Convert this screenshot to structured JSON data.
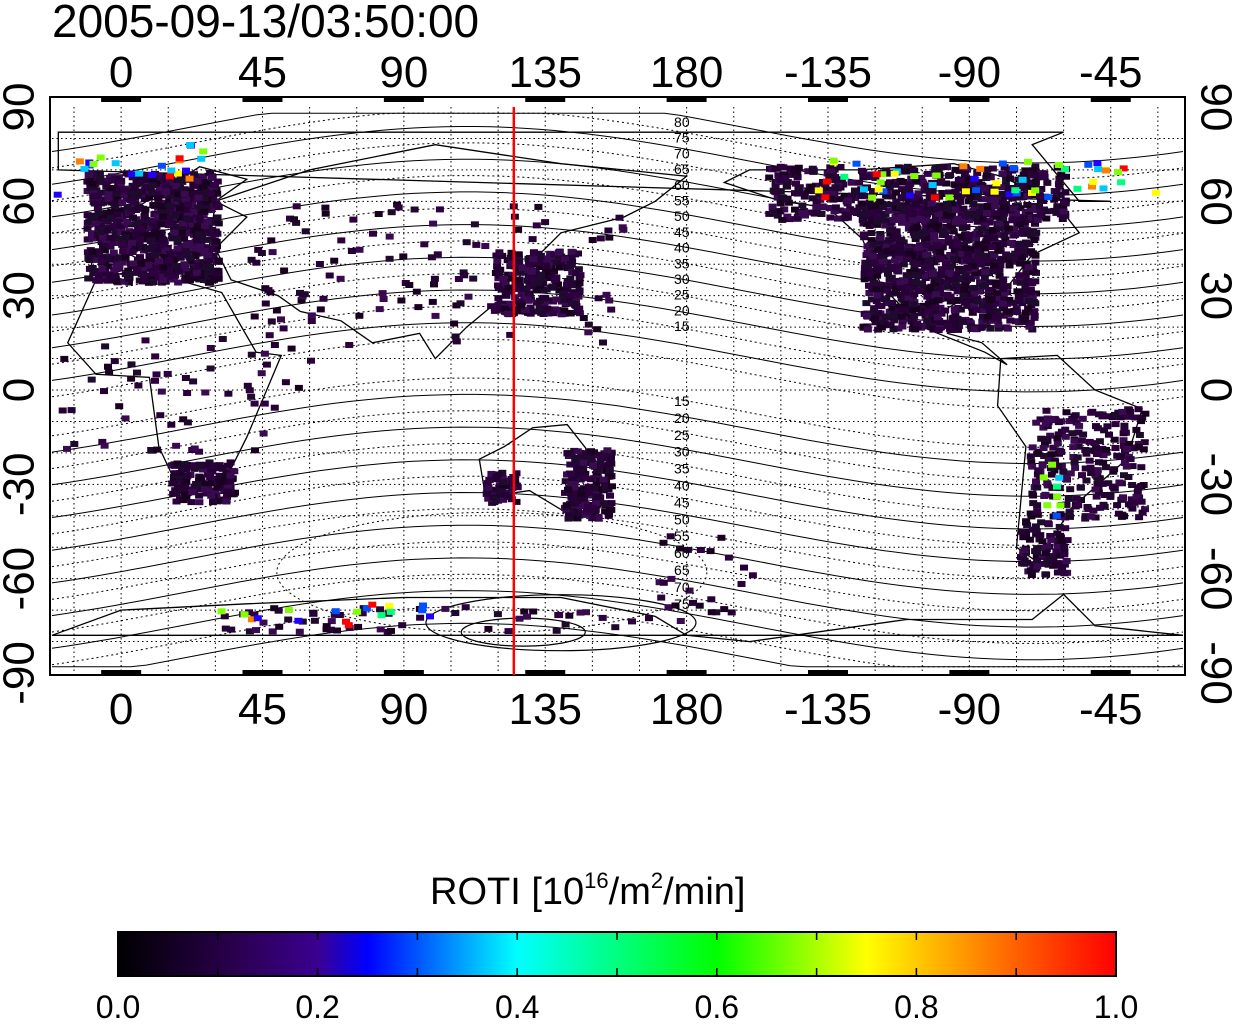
{
  "header": {
    "timestamp": "2005-09-13/03:50:00"
  },
  "map": {
    "lon_ticks": [
      "0",
      "45",
      "90",
      "135",
      "180",
      "-135",
      "-90",
      "-45"
    ],
    "lat_ticks": [
      "90",
      "60",
      "30",
      "0",
      "-30",
      "-60",
      "-90"
    ],
    "meridian_marker_lon": 125,
    "meridian_marker_color": "#ff0000",
    "north_contour_labels": [
      "80",
      "75",
      "70",
      "65",
      "60",
      "55",
      "50",
      "45",
      "40",
      "35",
      "30",
      "25",
      "20",
      "15"
    ],
    "south_contour_labels": [
      "15",
      "20",
      "25",
      "30",
      "35",
      "40",
      "45",
      "50",
      "55",
      "60",
      "65",
      "70",
      "75"
    ]
  },
  "colorbar": {
    "label_prefix": "ROTI  [10",
    "label_exp1": "16",
    "label_mid": "/m",
    "label_exp2": "2",
    "label_suffix": "/min]",
    "ticks": [
      "0.0",
      "0.2",
      "0.4",
      "0.6",
      "0.8",
      "1.0"
    ],
    "min": 0.0,
    "max": 1.0,
    "colormap": [
      "#000000",
      "#3a0060",
      "#0010ff",
      "#00ffff",
      "#00ff00",
      "#ffff00",
      "#ff0000"
    ]
  }
}
